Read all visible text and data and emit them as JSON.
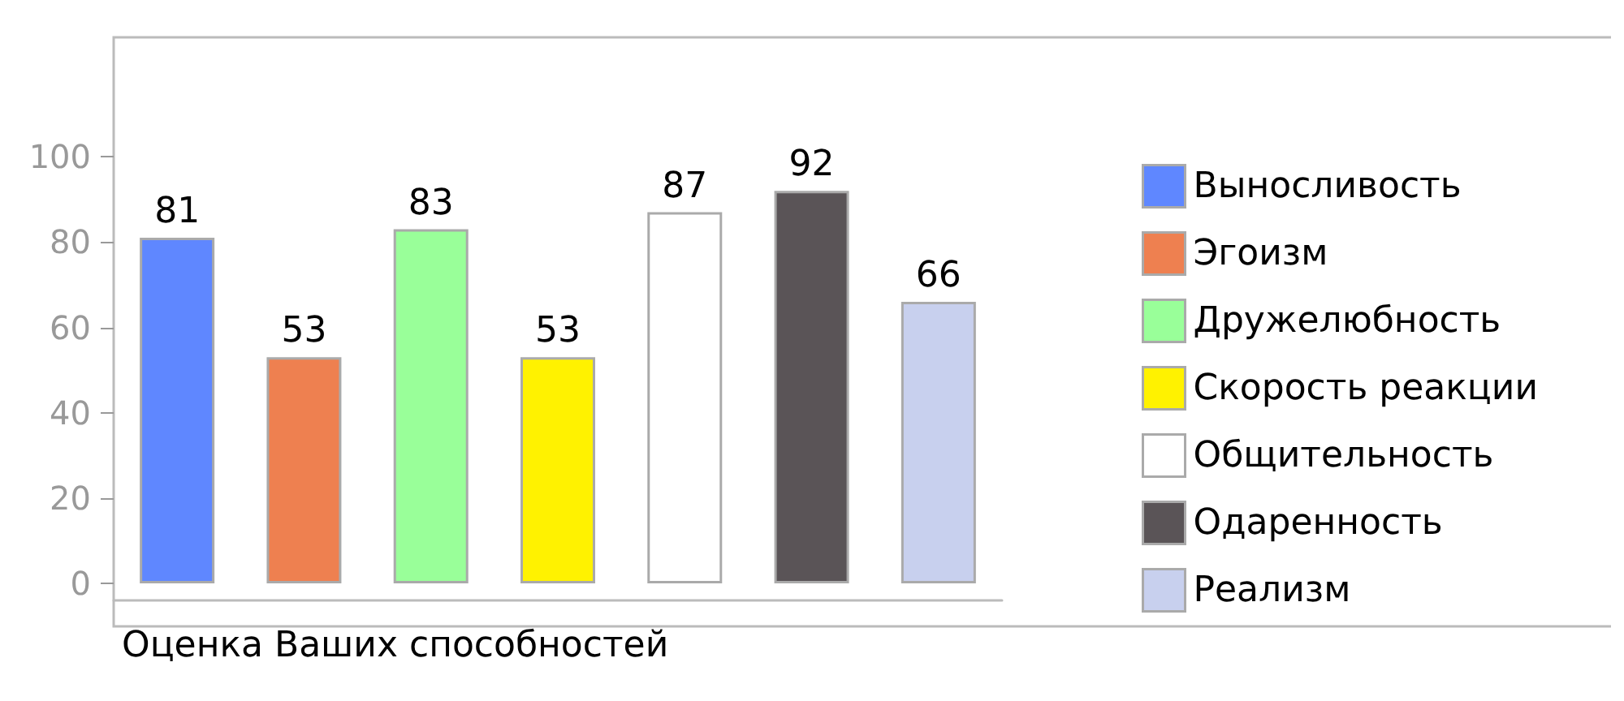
{
  "chart_data": {
    "type": "bar",
    "categories": [
      null,
      null,
      null,
      null,
      null,
      null,
      null
    ],
    "series": [
      {
        "name": "Выносливость",
        "color": "#5f87ff",
        "values": [
          81,
          null,
          null,
          null,
          null,
          null,
          null
        ]
      },
      {
        "name": "Эгоизм",
        "color": "#ee8050",
        "values": [
          null,
          53,
          null,
          null,
          null,
          null,
          null
        ]
      },
      {
        "name": "Дружелюбность",
        "color": "#99ff99",
        "values": [
          null,
          null,
          83,
          null,
          null,
          null,
          null
        ]
      },
      {
        "name": "Скорость реакции",
        "color": "#fff200",
        "values": [
          null,
          null,
          null,
          53,
          null,
          null,
          null
        ]
      },
      {
        "name": "Общительность",
        "color": "#ffffff",
        "values": [
          null,
          null,
          null,
          null,
          87,
          null,
          null
        ]
      },
      {
        "name": "Одаренность",
        "color": "#5a5457",
        "values": [
          null,
          null,
          null,
          null,
          null,
          92,
          null
        ]
      },
      {
        "name": "Реализм",
        "color": "#c8d0ee",
        "values": [
          null,
          null,
          null,
          null,
          null,
          null,
          66
        ]
      }
    ],
    "ylim": [
      -4,
      128
    ],
    "yticks": [
      0,
      20,
      40,
      60,
      80,
      100
    ],
    "grid": false,
    "legend": "right",
    "data_labels": true,
    "annotations": [
      "Оценка Ваших способностей"
    ]
  }
}
